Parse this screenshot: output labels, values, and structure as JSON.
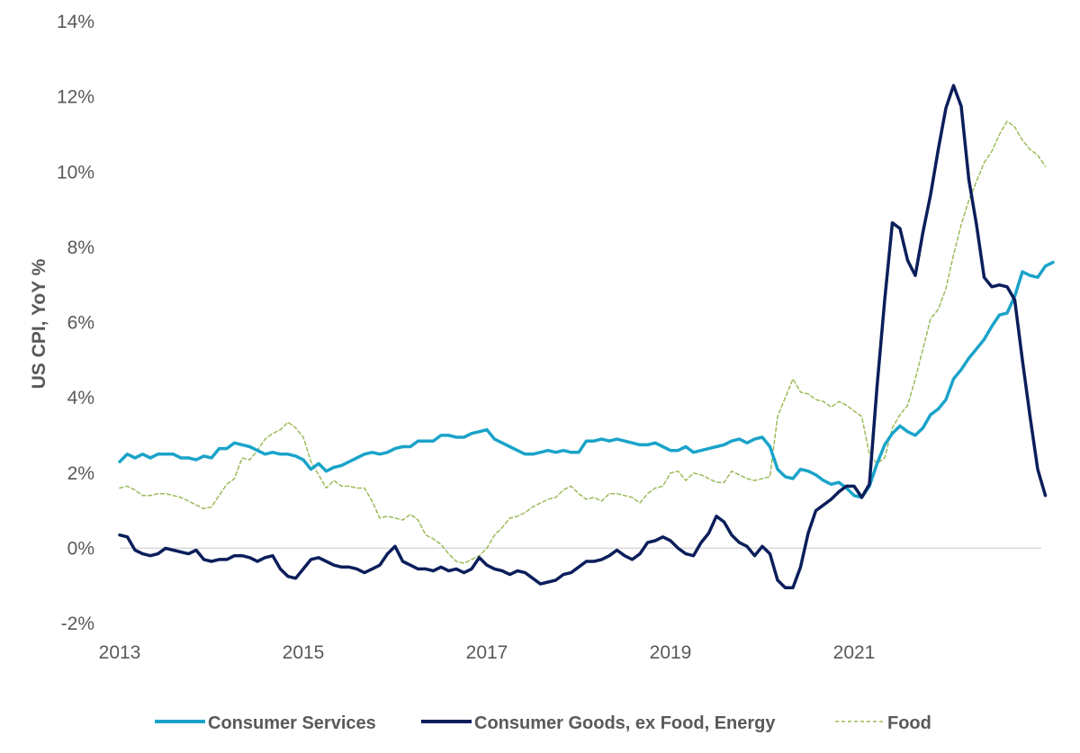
{
  "chart_data": {
    "type": "line",
    "title": "",
    "xlabel": "",
    "ylabel": "US CPI, YoY %",
    "x_start": "2013-01",
    "x_frequency": "monthly",
    "x_ticks": [
      "2013",
      "2015",
      "2017",
      "2019",
      "2021"
    ],
    "y_ticks": [
      "-2%",
      "0%",
      "2%",
      "4%",
      "6%",
      "8%",
      "10%",
      "12%",
      "14%"
    ],
    "ylim": [
      -2,
      14
    ],
    "legend_position": "bottom",
    "grid": false,
    "series": [
      {
        "name": "Consumer Services",
        "color": "#1AA3C9",
        "style": "solid",
        "values": [
          2.3,
          2.5,
          2.4,
          2.5,
          2.4,
          2.5,
          2.5,
          2.5,
          2.4,
          2.4,
          2.35,
          2.45,
          2.4,
          2.65,
          2.65,
          2.8,
          2.75,
          2.7,
          2.6,
          2.5,
          2.55,
          2.5,
          2.5,
          2.45,
          2.35,
          2.1,
          2.25,
          2.05,
          2.15,
          2.2,
          2.3,
          2.4,
          2.5,
          2.55,
          2.5,
          2.55,
          2.65,
          2.7,
          2.7,
          2.85,
          2.85,
          2.85,
          3.0,
          3.0,
          2.95,
          2.95,
          3.05,
          3.1,
          3.15,
          2.9,
          2.8,
          2.7,
          2.6,
          2.5,
          2.5,
          2.55,
          2.6,
          2.55,
          2.6,
          2.55,
          2.55,
          2.85,
          2.85,
          2.9,
          2.85,
          2.9,
          2.85,
          2.8,
          2.75,
          2.75,
          2.8,
          2.7,
          2.6,
          2.6,
          2.7,
          2.55,
          2.6,
          2.65,
          2.7,
          2.75,
          2.85,
          2.9,
          2.8,
          2.9,
          2.95,
          2.7,
          2.1,
          1.9,
          1.85,
          2.1,
          2.05,
          1.95,
          1.8,
          1.7,
          1.75,
          1.6,
          1.4,
          1.35,
          1.65,
          2.25,
          2.75,
          3.05,
          3.25,
          3.1,
          3.0,
          3.2,
          3.55,
          3.7,
          3.95,
          4.5,
          4.75,
          5.05,
          5.3,
          5.55,
          5.9,
          6.2,
          6.25,
          6.7,
          7.35,
          7.25,
          7.2,
          7.5,
          7.6
        ]
      },
      {
        "name": "Consumer Goods, ex Food, Energy",
        "color": "#0B1E5B",
        "style": "solid",
        "values": [
          0.35,
          0.3,
          -0.05,
          -0.15,
          -0.2,
          -0.15,
          0.0,
          -0.05,
          -0.1,
          -0.15,
          -0.05,
          -0.3,
          -0.35,
          -0.3,
          -0.3,
          -0.2,
          -0.2,
          -0.25,
          -0.35,
          -0.25,
          -0.2,
          -0.55,
          -0.75,
          -0.8,
          -0.55,
          -0.3,
          -0.25,
          -0.35,
          -0.45,
          -0.5,
          -0.5,
          -0.55,
          -0.65,
          -0.55,
          -0.45,
          -0.15,
          0.05,
          -0.35,
          -0.45,
          -0.55,
          -0.55,
          -0.6,
          -0.5,
          -0.6,
          -0.55,
          -0.65,
          -0.55,
          -0.25,
          -0.45,
          -0.55,
          -0.6,
          -0.7,
          -0.6,
          -0.65,
          -0.8,
          -0.95,
          -0.9,
          -0.85,
          -0.7,
          -0.65,
          -0.5,
          -0.35,
          -0.35,
          -0.3,
          -0.2,
          -0.05,
          -0.2,
          -0.3,
          -0.15,
          0.15,
          0.2,
          0.3,
          0.2,
          0.0,
          -0.15,
          -0.2,
          0.15,
          0.4,
          0.85,
          0.7,
          0.35,
          0.15,
          0.05,
          -0.2,
          0.05,
          -0.15,
          -0.85,
          -1.05,
          -1.05,
          -0.5,
          0.4,
          1.0,
          1.15,
          1.3,
          1.5,
          1.65,
          1.65,
          1.35,
          1.7,
          4.3,
          6.6,
          8.65,
          8.5,
          7.65,
          7.25,
          8.4,
          9.4,
          10.6,
          11.7,
          12.3,
          11.75,
          9.8,
          8.6,
          7.2,
          6.95,
          7.0,
          6.95,
          6.6,
          5.0,
          3.5,
          2.1,
          1.4
        ]
      },
      {
        "name": "Food",
        "color": "#9BBB59",
        "style": "dashed",
        "values": [
          1.6,
          1.65,
          1.55,
          1.4,
          1.4,
          1.45,
          1.45,
          1.4,
          1.35,
          1.25,
          1.15,
          1.05,
          1.1,
          1.4,
          1.7,
          1.85,
          2.4,
          2.35,
          2.6,
          2.9,
          3.05,
          3.15,
          3.35,
          3.2,
          2.95,
          2.3,
          1.95,
          1.6,
          1.8,
          1.65,
          1.65,
          1.6,
          1.6,
          1.25,
          0.8,
          0.85,
          0.8,
          0.75,
          0.9,
          0.75,
          0.35,
          0.25,
          0.1,
          -0.15,
          -0.35,
          -0.4,
          -0.3,
          -0.2,
          0.0,
          0.35,
          0.55,
          0.8,
          0.85,
          0.95,
          1.1,
          1.2,
          1.3,
          1.35,
          1.55,
          1.65,
          1.45,
          1.3,
          1.35,
          1.25,
          1.45,
          1.45,
          1.4,
          1.35,
          1.2,
          1.45,
          1.6,
          1.65,
          2.0,
          2.05,
          1.8,
          2.0,
          1.95,
          1.85,
          1.75,
          1.75,
          2.05,
          1.95,
          1.85,
          1.8,
          1.85,
          1.9,
          3.5,
          4.0,
          4.5,
          4.15,
          4.1,
          3.95,
          3.9,
          3.75,
          3.9,
          3.8,
          3.65,
          3.5,
          2.5,
          2.25,
          2.4,
          3.2,
          3.55,
          3.8,
          4.5,
          5.3,
          6.1,
          6.35,
          6.9,
          7.8,
          8.6,
          9.25,
          9.75,
          10.25,
          10.55,
          11.0,
          11.35,
          11.2,
          10.85,
          10.6,
          10.45,
          10.15
        ]
      }
    ]
  }
}
